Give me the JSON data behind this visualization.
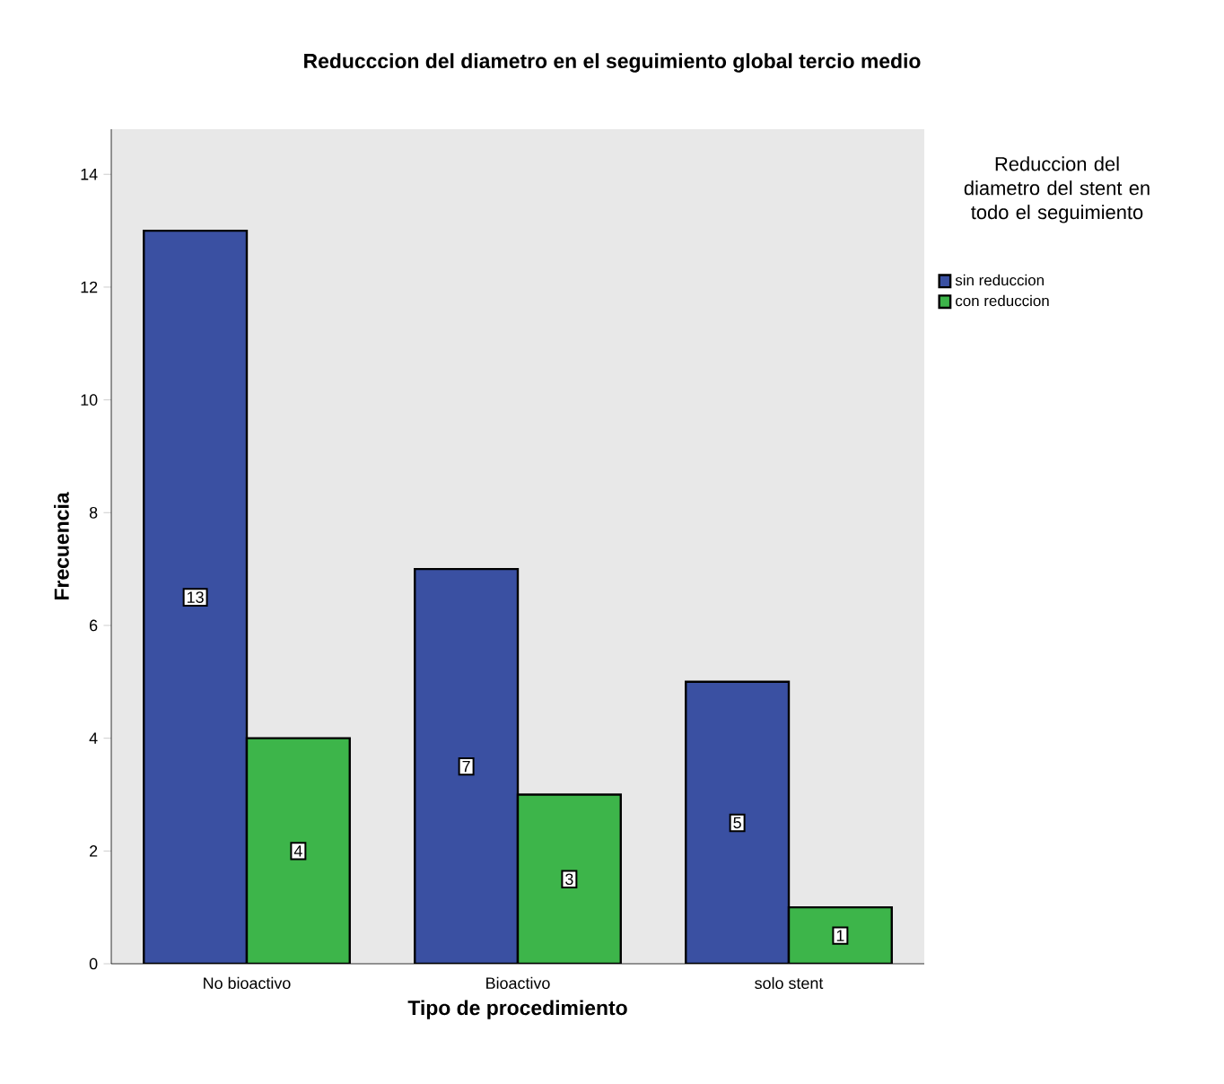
{
  "chart_data": {
    "type": "bar",
    "title": "Reducccion del diametro en el seguimiento global tercio medio",
    "xlabel": "Tipo de procedimiento",
    "ylabel": "Frecuencia",
    "legend_title": "Reduccion del diametro del stent en todo el  seguimiento",
    "categories": [
      "No bioactivo",
      "Bioactivo",
      "solo stent"
    ],
    "series": [
      {
        "name": "sin reduccion",
        "color": "#3a50a2",
        "values": [
          13,
          7,
          5
        ]
      },
      {
        "name": "con reduccion",
        "color": "#3db54a",
        "values": [
          4,
          3,
          1
        ]
      }
    ],
    "ylim": [
      0,
      14.8
    ],
    "yticks": [
      0,
      2,
      4,
      6,
      8,
      10,
      12,
      14
    ],
    "data_labels": true,
    "grid": false,
    "legend": "top right"
  }
}
